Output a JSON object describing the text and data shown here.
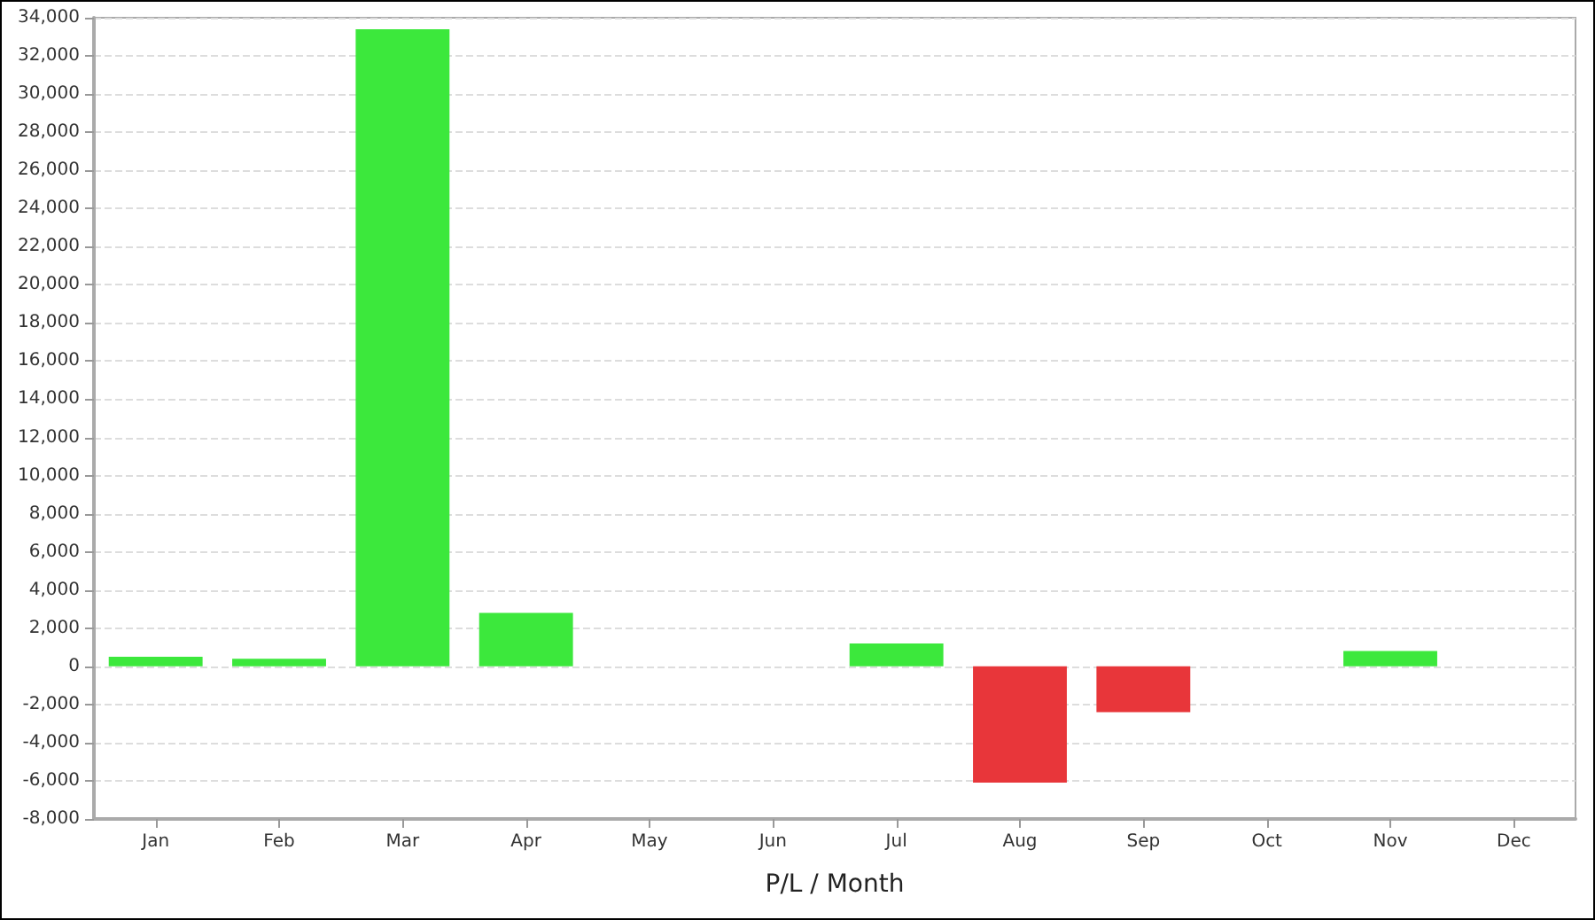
{
  "chart_data": {
    "type": "bar",
    "xlabel": "P/L / Month",
    "categories": [
      "Jan",
      "Feb",
      "Mar",
      "Apr",
      "May",
      "Jun",
      "Jul",
      "Aug",
      "Sep",
      "Oct",
      "Nov",
      "Dec"
    ],
    "values": [
      500,
      400,
      33400,
      2800,
      0,
      0,
      1200,
      -6100,
      -2400,
      0,
      800,
      0
    ],
    "colors": [
      "#3ce83c",
      "#3ce83c",
      "#3ce83c",
      "#3ce83c",
      "#3ce83c",
      "#3ce83c",
      "#3ce83c",
      "#e8363a",
      "#e8363a",
      "#3ce83c",
      "#3ce83c",
      "#3ce83c"
    ],
    "ylim": [
      -8000,
      34000
    ],
    "yticks": [
      {
        "value": -8000,
        "label": "-8,000"
      },
      {
        "value": -6000,
        "label": "-6,000"
      },
      {
        "value": -4000,
        "label": "-4,000"
      },
      {
        "value": -2000,
        "label": "-2,000"
      },
      0,
      {
        "value": 2000,
        "label": "2,000"
      },
      {
        "value": 4000,
        "label": "4,000"
      },
      {
        "value": 6000,
        "label": "6,000"
      },
      {
        "value": 8000,
        "label": "8,000"
      },
      {
        "value": 10000,
        "label": "10,000"
      },
      {
        "value": 12000,
        "label": "12,000"
      },
      {
        "value": 14000,
        "label": "14,000"
      },
      {
        "value": 16000,
        "label": "16,000"
      },
      {
        "value": 18000,
        "label": "18,000"
      },
      {
        "value": 20000,
        "label": "20,000"
      },
      {
        "value": 22000,
        "label": "22,000"
      },
      {
        "value": 24000,
        "label": "24,000"
      },
      {
        "value": 26000,
        "label": "26,000"
      },
      {
        "value": 28000,
        "label": "28,000"
      },
      {
        "value": 30000,
        "label": "30,000"
      },
      {
        "value": 32000,
        "label": "32,000"
      },
      {
        "value": 34000,
        "label": "34,000"
      }
    ],
    "grid": "y"
  }
}
